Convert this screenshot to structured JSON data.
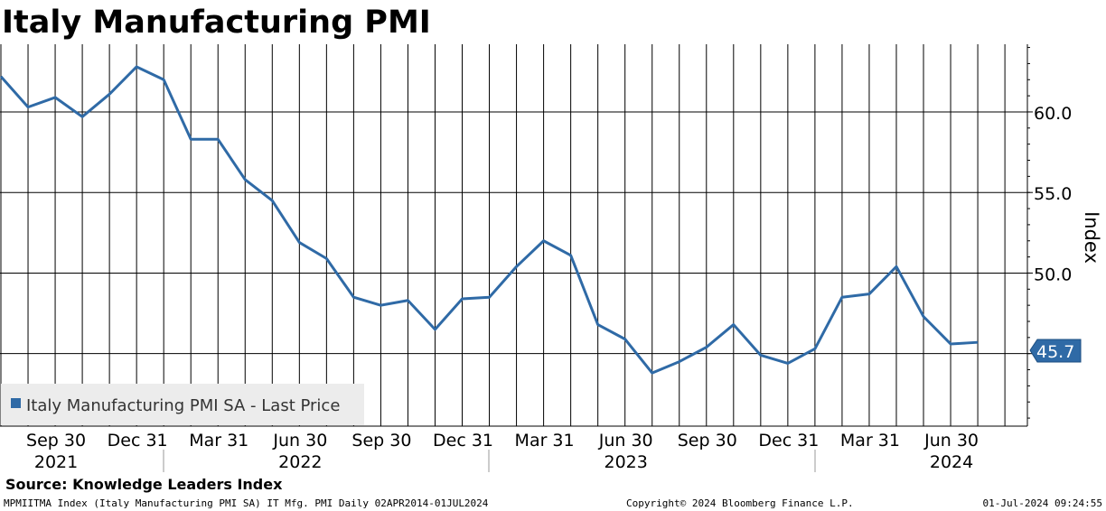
{
  "chart_data": {
    "type": "line",
    "title": "Italy Manufacturing PMI",
    "ylabel": "Index",
    "ylim": [
      40.5,
      64.2
    ],
    "yticks": [
      45.0,
      50.0,
      55.0,
      60.0
    ],
    "ytick_labels": [
      "45.0",
      "50.0",
      "55.0",
      "60.0"
    ],
    "xticks": [
      {
        "label": "...",
        "year": "",
        "x_index": -2.7
      },
      {
        "label": "Sep 30",
        "year": "2021",
        "x_index": 2
      },
      {
        "label": "Dec 31",
        "year": "",
        "x_index": 5
      },
      {
        "label": "Mar 31",
        "year": "",
        "x_index": 8
      },
      {
        "label": "Jun 30",
        "year": "2022",
        "x_index": 11
      },
      {
        "label": "Sep 30",
        "year": "",
        "x_index": 14
      },
      {
        "label": "Dec 31",
        "year": "",
        "x_index": 17
      },
      {
        "label": "Mar 31",
        "year": "",
        "x_index": 20
      },
      {
        "label": "Jun 30",
        "year": "2023",
        "x_index": 23
      },
      {
        "label": "Sep 30",
        "year": "",
        "x_index": 26
      },
      {
        "label": "Dec 31",
        "year": "",
        "x_index": 29
      },
      {
        "label": "Mar 31",
        "year": "",
        "x_index": 32
      },
      {
        "label": "Jun 30",
        "year": "2024",
        "x_index": 35
      }
    ],
    "x": [
      "Jun 30 2021",
      "Jul 31 2021",
      "Aug 31 2021",
      "Sep 30 2021",
      "Oct 31 2021",
      "Nov 30 2021",
      "Dec 31 2021",
      "Jan 31 2022",
      "Feb 28 2022",
      "Mar 31 2022",
      "Apr 30 2022",
      "May 31 2022",
      "Jun 30 2022",
      "Jul 31 2022",
      "Aug 31 2022",
      "Sep 30 2022",
      "Oct 31 2022",
      "Nov 30 2022",
      "Dec 31 2022",
      "Jan 31 2023",
      "Feb 28 2023",
      "Mar 31 2023",
      "Apr 30 2023",
      "May 31 2023",
      "Jun 30 2023",
      "Jul 31 2023",
      "Aug 31 2023",
      "Sep 30 2023",
      "Oct 31 2023",
      "Nov 30 2023",
      "Dec 31 2023",
      "Jan 31 2024",
      "Feb 29 2024",
      "Mar 31 2024",
      "Apr 30 2024",
      "May 31 2024",
      "Jun 30 2024"
    ],
    "series": [
      {
        "name": "Italy Manufacturing PMI SA - Last Price",
        "color": "#2f6aa6",
        "values": [
          62.2,
          60.3,
          60.9,
          59.7,
          61.1,
          62.8,
          62.0,
          58.3,
          58.3,
          55.8,
          54.5,
          51.9,
          50.9,
          48.5,
          48.0,
          48.3,
          46.5,
          48.4,
          48.5,
          50.4,
          52.0,
          51.1,
          46.8,
          45.9,
          43.8,
          44.5,
          45.4,
          46.8,
          44.9,
          44.4,
          45.3,
          48.5,
          48.7,
          50.4,
          47.3,
          45.6,
          45.7
        ]
      }
    ],
    "last_value_label": "45.7",
    "legend": {
      "position": "bottom-left",
      "label": "Italy Manufacturing PMI SA - Last Price"
    },
    "grid": true
  },
  "source": "Source: Knowledge Leaders Index",
  "footer": {
    "left": "MPMIITMA Index (Italy Manufacturing PMI  SA) IT Mfg. PMI  Daily 02APR2014-01JUL2024",
    "center": "Copyright© 2024 Bloomberg Finance L.P.",
    "right": "01-Jul-2024 09:24:55"
  }
}
